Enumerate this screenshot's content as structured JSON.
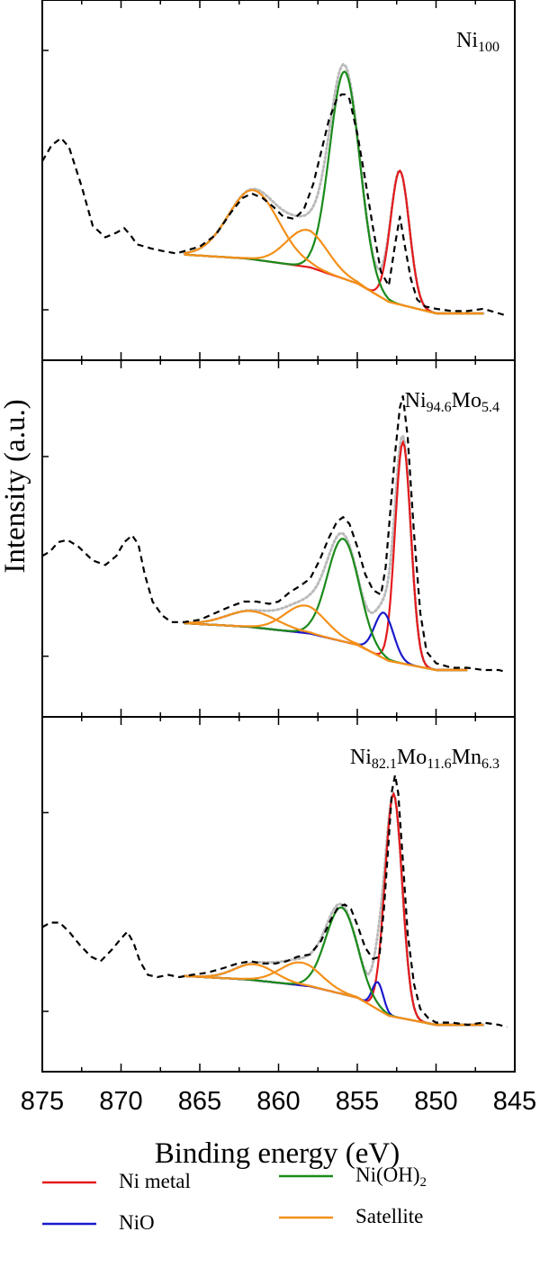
{
  "chart_data": {
    "type": "line",
    "xlabel": "Binding energy (eV)",
    "ylabel": "Intensity (a.u.)",
    "xlim": [
      875,
      845
    ],
    "x_reversed": true,
    "x_ticks": [
      875,
      870,
      865,
      860,
      855,
      850,
      845
    ],
    "x_tick_labels": [
      "875",
      "870",
      "865",
      "860",
      "855",
      "850",
      "845"
    ],
    "grid": false,
    "legend_position": "bottom",
    "legend": [
      {
        "label": "Ni metal",
        "sub": "",
        "color": "#e41a1c"
      },
      {
        "label": "Ni(OH)",
        "sub": "2",
        "color": "#1a8a1a"
      },
      {
        "label": "NiO",
        "sub": "",
        "color": "#1a1acc"
      },
      {
        "label": "Satellite",
        "sub": "",
        "color": "#f39019"
      }
    ],
    "colors": {
      "Ni metal": "#e41a1c",
      "NiO": "#1a1acc",
      "Ni(OH)2": "#1a8a1a",
      "Satellite": "#f39019",
      "experimental": "#000000",
      "fit_envelope": "#bbbbbb"
    },
    "panels": [
      {
        "label_parts": [
          {
            "t": "Ni",
            "s": false
          },
          {
            "t": "100",
            "s": true
          }
        ],
        "background": [
          [
            866,
            0.255
          ],
          [
            862,
            0.238
          ],
          [
            858,
            0.2
          ],
          [
            855,
            0.13
          ],
          [
            853,
            0.05
          ],
          [
            850,
            0.0
          ],
          [
            847,
            0.0
          ]
        ],
        "components": [
          {
            "name": "Ni metal",
            "center": 852.3,
            "width": 0.6,
            "amp": 0.58
          },
          {
            "name": "Ni(OH)2",
            "center": 855.8,
            "width": 0.95,
            "amp": 0.9
          },
          {
            "name": "Satellite",
            "center": 861.6,
            "width": 1.6,
            "amp": 0.3
          },
          {
            "name": "Satellite",
            "center": 858.2,
            "width": 1.3,
            "amp": 0.16
          }
        ],
        "fit_range": [
          866,
          847
        ],
        "experimental": {
          "x": [
            875,
            874.4,
            873.8,
            873.3,
            872.5,
            871.8,
            871.0,
            870.3,
            869.8,
            869.4,
            869.0,
            868.5,
            868.0,
            867.3,
            866.5,
            866.0,
            865.0,
            864.0,
            863.0,
            862.3,
            861.7,
            861.0,
            860.3,
            859.7,
            859.0,
            858.4,
            857.8,
            857.3,
            856.8,
            856.3,
            856.0,
            855.8,
            855.5,
            855.0,
            854.5,
            854.0,
            853.5,
            853.0,
            852.6,
            852.3,
            852.0,
            851.6,
            851.2,
            850.7,
            850.0,
            849.0,
            848.0,
            847.0,
            846.0,
            845.5
          ],
          "y": [
            0.66,
            0.73,
            0.76,
            0.72,
            0.55,
            0.38,
            0.33,
            0.35,
            0.37,
            0.34,
            0.3,
            0.29,
            0.28,
            0.27,
            0.26,
            0.27,
            0.29,
            0.34,
            0.44,
            0.5,
            0.52,
            0.5,
            0.46,
            0.42,
            0.41,
            0.45,
            0.56,
            0.7,
            0.84,
            0.93,
            0.95,
            0.95,
            0.93,
            0.78,
            0.58,
            0.37,
            0.18,
            0.12,
            0.3,
            0.42,
            0.3,
            0.15,
            0.06,
            0.03,
            0.02,
            0.01,
            0.01,
            0.02,
            0.0,
            -0.01
          ]
        }
      },
      {
        "label_parts": [
          {
            "t": "Ni",
            "s": false
          },
          {
            "t": "94.6",
            "s": true
          },
          {
            "t": "Mo",
            "s": false
          },
          {
            "t": "5.4",
            "s": true
          }
        ],
        "background": [
          [
            866,
            0.205
          ],
          [
            862,
            0.19
          ],
          [
            858,
            0.16
          ],
          [
            855,
            0.11
          ],
          [
            853,
            0.04
          ],
          [
            850,
            0.0
          ],
          [
            848,
            0.0
          ]
        ],
        "components": [
          {
            "name": "Ni metal",
            "center": 852.1,
            "width": 0.5,
            "amp": 0.97
          },
          {
            "name": "NiO",
            "center": 853.3,
            "width": 0.6,
            "amp": 0.2
          },
          {
            "name": "Ni(OH)2",
            "center": 855.9,
            "width": 1.0,
            "amp": 0.45
          },
          {
            "name": "Satellite",
            "center": 861.7,
            "width": 1.6,
            "amp": 0.07
          },
          {
            "name": "Satellite",
            "center": 858.3,
            "width": 1.3,
            "amp": 0.12
          }
        ],
        "fit_range": [
          866,
          848
        ],
        "experimental": {
          "x": [
            875,
            874.5,
            874.0,
            873.4,
            872.7,
            871.8,
            871.0,
            870.3,
            869.8,
            869.3,
            868.9,
            868.5,
            868.0,
            867.4,
            866.8,
            866.0,
            865.0,
            864.0,
            863.0,
            862.2,
            861.4,
            860.6,
            860.0,
            859.3,
            858.6,
            858.0,
            857.4,
            856.8,
            856.3,
            855.9,
            855.5,
            855.0,
            854.5,
            854.0,
            853.5,
            853.2,
            852.9,
            852.6,
            852.3,
            852.1,
            851.8,
            851.4,
            851.0,
            850.6,
            850.0,
            849.0,
            848.0,
            847.0,
            846.0,
            845.5
          ],
          "y": [
            0.5,
            0.52,
            0.56,
            0.57,
            0.54,
            0.48,
            0.46,
            0.5,
            0.56,
            0.59,
            0.55,
            0.42,
            0.3,
            0.24,
            0.21,
            0.21,
            0.22,
            0.25,
            0.28,
            0.3,
            0.3,
            0.29,
            0.3,
            0.34,
            0.37,
            0.4,
            0.48,
            0.58,
            0.65,
            0.67,
            0.64,
            0.54,
            0.42,
            0.35,
            0.33,
            0.45,
            0.7,
            0.95,
            1.15,
            1.2,
            1.02,
            0.6,
            0.25,
            0.08,
            0.03,
            0.01,
            0.01,
            0.0,
            0.0,
            -0.01
          ]
        }
      },
      {
        "label_parts": [
          {
            "t": "Ni",
            "s": false
          },
          {
            "t": "82.1",
            "s": true
          },
          {
            "t": "Mo",
            "s": false
          },
          {
            "t": "11.6",
            "s": true
          },
          {
            "t": "Mn",
            "s": false
          },
          {
            "t": "6.3",
            "s": true
          }
        ],
        "background": [
          [
            866,
            0.215
          ],
          [
            862,
            0.2
          ],
          [
            858,
            0.17
          ],
          [
            855,
            0.12
          ],
          [
            853,
            0.04
          ],
          [
            850,
            0.0
          ],
          [
            847,
            0.0
          ]
        ],
        "components": [
          {
            "name": "Ni metal",
            "center": 852.7,
            "width": 0.55,
            "amp": 0.98
          },
          {
            "name": "NiO",
            "center": 853.7,
            "width": 0.35,
            "amp": 0.12
          },
          {
            "name": "Ni(OH)2",
            "center": 856.0,
            "width": 1.0,
            "amp": 0.38
          },
          {
            "name": "Satellite",
            "center": 861.5,
            "width": 1.3,
            "amp": 0.07
          },
          {
            "name": "Satellite",
            "center": 858.6,
            "width": 1.3,
            "amp": 0.1
          }
        ],
        "fit_range": [
          866,
          847
        ],
        "experimental": {
          "x": [
            875,
            874.5,
            873.9,
            873.3,
            872.6,
            871.9,
            871.3,
            870.6,
            870.0,
            869.6,
            869.2,
            868.8,
            868.3,
            867.7,
            867.0,
            866.3,
            865.5,
            864.5,
            863.5,
            862.6,
            861.8,
            861.0,
            860.2,
            859.5,
            858.8,
            858.0,
            857.3,
            856.7,
            856.2,
            855.8,
            855.4,
            855.0,
            854.5,
            854.0,
            853.6,
            853.3,
            853.0,
            852.8,
            852.6,
            852.4,
            852.1,
            851.8,
            851.4,
            851.0,
            850.5,
            850.0,
            849.0,
            848.0,
            847.0,
            846.0,
            845.5
          ],
          "y": [
            0.43,
            0.45,
            0.45,
            0.41,
            0.35,
            0.3,
            0.28,
            0.33,
            0.38,
            0.41,
            0.36,
            0.28,
            0.22,
            0.21,
            0.22,
            0.21,
            0.22,
            0.23,
            0.25,
            0.27,
            0.28,
            0.27,
            0.27,
            0.28,
            0.3,
            0.31,
            0.37,
            0.46,
            0.52,
            0.53,
            0.51,
            0.44,
            0.34,
            0.29,
            0.3,
            0.52,
            0.82,
            1.03,
            1.1,
            1.02,
            0.72,
            0.4,
            0.18,
            0.07,
            0.03,
            0.01,
            0.01,
            0.0,
            0.01,
            0.0,
            -0.01
          ]
        }
      }
    ]
  }
}
